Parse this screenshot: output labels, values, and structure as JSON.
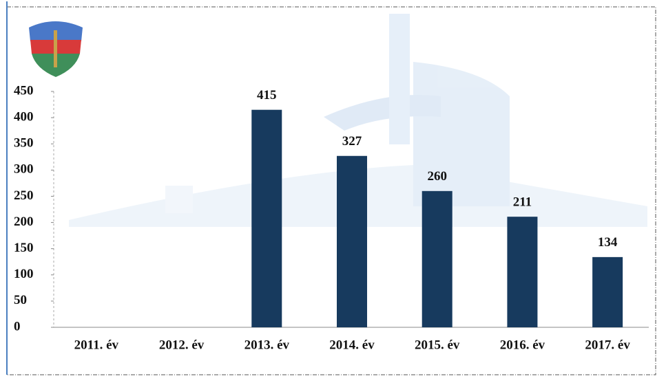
{
  "chart_data": {
    "type": "bar",
    "categories": [
      "2011. év",
      "2012. év",
      "2013. év",
      "2014. év",
      "2015. év",
      "2016. év",
      "2017. év"
    ],
    "values": [
      null,
      null,
      415,
      327,
      260,
      211,
      134
    ],
    "color": "#173a5e",
    "ylim": [
      0,
      450
    ],
    "yticks": [
      0,
      50,
      100,
      150,
      200,
      250,
      300,
      350,
      400,
      450
    ],
    "grid": false
  }
}
